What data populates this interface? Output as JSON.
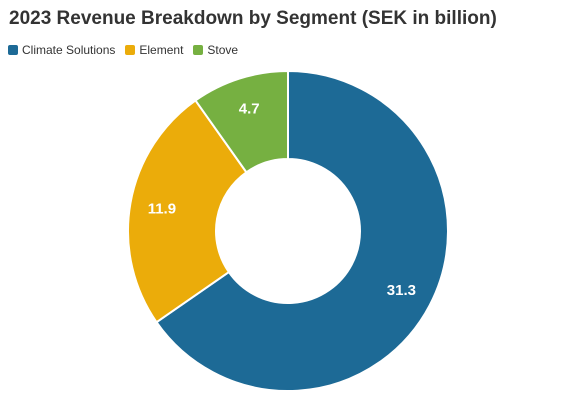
{
  "chart_data": {
    "type": "pie",
    "style": "donut",
    "title": "2023 Revenue Breakdown by Segment (SEK in billion)",
    "legend_position": "top-left",
    "categories": [
      "Climate Solutions",
      "Element",
      "Stove"
    ],
    "values": [
      31.3,
      11.9,
      4.7
    ],
    "value_labels": [
      "31.3",
      "11.9",
      "4.7"
    ],
    "colors": [
      "#1d6a96",
      "#ebac0a",
      "#76b041"
    ],
    "label_color": "#ffffff"
  }
}
